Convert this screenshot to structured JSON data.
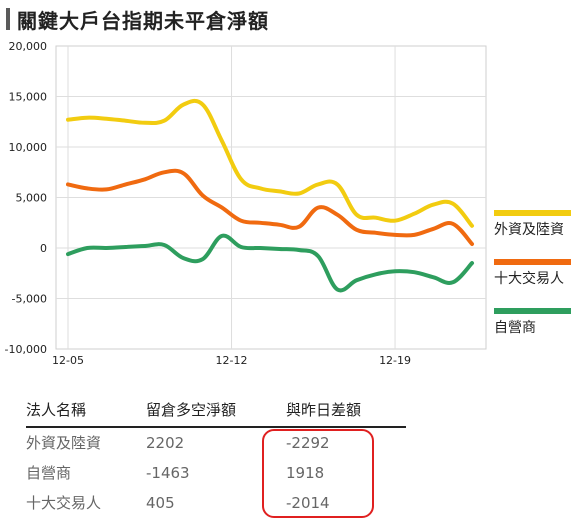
{
  "header": {
    "title": "關鍵大戶台指期未平倉淨額"
  },
  "chart_data": {
    "type": "line",
    "title": "關鍵大戶台指期未平倉淨額",
    "xlabel": "",
    "ylabel": "",
    "ylim": [
      -10000,
      20000
    ],
    "yticks": [
      -10000,
      -5000,
      0,
      5000,
      10000,
      15000,
      20000
    ],
    "ytick_labels": [
      "-10,000",
      "-5,000",
      "0",
      "5,000",
      "10,000",
      "15,000",
      "20,000"
    ],
    "x": [
      0,
      1,
      2,
      3,
      4,
      5,
      6,
      7,
      8,
      9,
      10,
      11,
      12,
      13,
      14,
      15,
      16,
      17,
      18,
      19,
      20,
      21
    ],
    "xticks": [
      {
        "x": 0,
        "label": "12-05"
      },
      {
        "x": 8.5,
        "label": "12-12"
      },
      {
        "x": 17,
        "label": "12-19"
      }
    ],
    "grid": true,
    "legend_position": "right",
    "series": [
      {
        "name": "外資及陸資",
        "color": "#f2cc10",
        "values": [
          12700,
          12900,
          12800,
          12600,
          12400,
          12600,
          14200,
          14200,
          10600,
          6800,
          5900,
          5600,
          5400,
          6300,
          6300,
          3300,
          3000,
          2700,
          3400,
          4300,
          4400,
          2200
        ]
      },
      {
        "name": "十大交易人",
        "color": "#f06a10",
        "values": [
          6300,
          5900,
          5800,
          6300,
          6800,
          7500,
          7400,
          5200,
          4000,
          2700,
          2500,
          2300,
          2100,
          4000,
          3300,
          1800,
          1500,
          1300,
          1300,
          1900,
          2400,
          400
        ]
      },
      {
        "name": "自營商",
        "color": "#2e9e5e",
        "values": [
          -600,
          0,
          0,
          100,
          200,
          300,
          -1000,
          -1100,
          1200,
          100,
          0,
          -100,
          -200,
          -800,
          -4100,
          -3200,
          -2600,
          -2300,
          -2400,
          -2900,
          -3400,
          -1500
        ]
      }
    ]
  },
  "table": {
    "headers": [
      "法人名稱",
      "留倉多空淨額",
      "與昨日差額"
    ],
    "rows": [
      [
        "外資及陸資",
        "2202",
        "-2292"
      ],
      [
        "自營商",
        "-1463",
        "1918"
      ],
      [
        "十大交易人",
        "405",
        "-2014"
      ]
    ]
  }
}
